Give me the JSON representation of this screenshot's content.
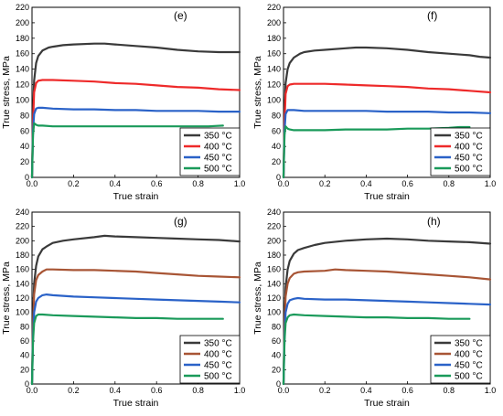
{
  "colors": {
    "350": "#3a3a3a",
    "400a": "#ee2a2a",
    "400b": "#a85535",
    "450": "#2a62c8",
    "500": "#1a9a5a"
  },
  "chart_data": [
    {
      "type": "line",
      "panel_label": "(e)",
      "xlabel": "True strain",
      "ylabel": "True stress, MPa",
      "xlim": [
        0,
        1.0
      ],
      "ylim": [
        0,
        220
      ],
      "xticks": [
        "0.0",
        "0.2",
        "0.4",
        "0.6",
        "0.8",
        "1.0"
      ],
      "yticks": [
        "0",
        "20",
        "40",
        "60",
        "80",
        "100",
        "120",
        "140",
        "160",
        "180",
        "200",
        "220"
      ],
      "legend_position": "bottom-right",
      "series": [
        {
          "name": "350 °C",
          "color_key": "350",
          "x": [
            0,
            0.005,
            0.01,
            0.02,
            0.03,
            0.05,
            0.08,
            0.1,
            0.15,
            0.2,
            0.3,
            0.35,
            0.4,
            0.5,
            0.6,
            0.7,
            0.8,
            0.9,
            0.95,
            1.0
          ],
          "y": [
            0,
            80,
            125,
            148,
            157,
            164,
            168,
            169,
            171,
            172,
            173,
            173,
            172,
            170,
            168,
            165,
            163,
            162,
            162,
            162
          ]
        },
        {
          "name": "400  °C",
          "color_key": "400a",
          "x": [
            0,
            0.005,
            0.01,
            0.02,
            0.03,
            0.05,
            0.08,
            0.1,
            0.2,
            0.3,
            0.4,
            0.5,
            0.6,
            0.7,
            0.8,
            0.9,
            1.0
          ],
          "y": [
            0,
            70,
            110,
            122,
            125,
            126,
            126,
            126,
            125,
            124,
            122,
            121,
            119,
            117,
            116,
            114,
            113
          ]
        },
        {
          "name": "450 °C",
          "color_key": "450",
          "x": [
            0,
            0.005,
            0.01,
            0.02,
            0.03,
            0.05,
            0.1,
            0.2,
            0.3,
            0.4,
            0.5,
            0.6,
            0.7,
            0.8,
            0.9,
            1.0
          ],
          "y": [
            0,
            60,
            82,
            89,
            90,
            90,
            89,
            88,
            88,
            87,
            87,
            86,
            86,
            86,
            85,
            85
          ]
        },
        {
          "name": "500 °C",
          "color_key": "500",
          "x": [
            0,
            0.005,
            0.01,
            0.02,
            0.03,
            0.05,
            0.1,
            0.2,
            0.3,
            0.4,
            0.5,
            0.6,
            0.7,
            0.8,
            0.85,
            0.92
          ],
          "y": [
            0,
            55,
            70,
            68,
            67,
            67,
            66,
            66,
            66,
            66,
            66,
            66,
            66,
            66,
            66,
            67
          ]
        }
      ]
    },
    {
      "type": "line",
      "panel_label": "(f)",
      "xlabel": "True strain",
      "ylabel": "True stress, MPa",
      "xlim": [
        0,
        1.0
      ],
      "ylim": [
        0,
        220
      ],
      "xticks": [
        "0.0",
        "0.2",
        "0.4",
        "0.6",
        "0.8",
        "1.0"
      ],
      "yticks": [
        "0",
        "20",
        "40",
        "60",
        "80",
        "100",
        "120",
        "140",
        "160",
        "180",
        "200",
        "220"
      ],
      "legend_position": "bottom-right",
      "series": [
        {
          "name": "350 °C",
          "color_key": "350",
          "x": [
            0,
            0.005,
            0.01,
            0.02,
            0.03,
            0.05,
            0.08,
            0.1,
            0.15,
            0.2,
            0.3,
            0.35,
            0.4,
            0.5,
            0.6,
            0.7,
            0.8,
            0.9,
            0.95,
            1.0
          ],
          "y": [
            0,
            80,
            122,
            140,
            148,
            155,
            160,
            162,
            164,
            165,
            167,
            168,
            168,
            167,
            165,
            162,
            160,
            158,
            156,
            155
          ]
        },
        {
          "name": "400  °C",
          "color_key": "400a",
          "x": [
            0,
            0.005,
            0.01,
            0.02,
            0.03,
            0.05,
            0.1,
            0.2,
            0.3,
            0.4,
            0.5,
            0.6,
            0.7,
            0.8,
            0.9,
            1.0
          ],
          "y": [
            0,
            70,
            108,
            118,
            120,
            121,
            121,
            121,
            120,
            119,
            118,
            117,
            115,
            114,
            112,
            110
          ]
        },
        {
          "name": "450 °C",
          "color_key": "450",
          "x": [
            0,
            0.005,
            0.01,
            0.02,
            0.03,
            0.05,
            0.1,
            0.2,
            0.3,
            0.4,
            0.5,
            0.6,
            0.7,
            0.8,
            0.9,
            1.0
          ],
          "y": [
            0,
            60,
            82,
            87,
            87,
            87,
            86,
            86,
            86,
            86,
            85,
            85,
            85,
            84,
            84,
            83
          ]
        },
        {
          "name": "500 °C",
          "color_key": "500",
          "x": [
            0,
            0.005,
            0.01,
            0.02,
            0.03,
            0.05,
            0.1,
            0.2,
            0.3,
            0.4,
            0.5,
            0.6,
            0.7,
            0.8,
            0.85,
            0.9
          ],
          "y": [
            0,
            55,
            66,
            63,
            62,
            61,
            61,
            61,
            62,
            62,
            62,
            63,
            63,
            64,
            65,
            65
          ]
        }
      ]
    },
    {
      "type": "line",
      "panel_label": "(g)",
      "xlabel": "True strain",
      "ylabel": "True stress, MPa",
      "xlim": [
        0,
        1.0
      ],
      "ylim": [
        0,
        240
      ],
      "xticks": [
        "0.0",
        "0.2",
        "0.4",
        "0.6",
        "0.8",
        "1.0"
      ],
      "yticks": [
        "0",
        "20",
        "40",
        "60",
        "80",
        "100",
        "120",
        "140",
        "160",
        "180",
        "200",
        "220",
        "240"
      ],
      "legend_position": "bottom-right",
      "series": [
        {
          "name": "350 °C",
          "color_key": "350",
          "x": [
            0,
            0.005,
            0.01,
            0.02,
            0.03,
            0.05,
            0.07,
            0.1,
            0.15,
            0.2,
            0.3,
            0.35,
            0.4,
            0.5,
            0.6,
            0.7,
            0.8,
            0.9,
            1.0
          ],
          "y": [
            0,
            90,
            140,
            165,
            178,
            188,
            192,
            197,
            200,
            202,
            205,
            207,
            206,
            205,
            204,
            203,
            202,
            201,
            199
          ]
        },
        {
          "name": "400  °C",
          "color_key": "400b",
          "x": [
            0,
            0.005,
            0.01,
            0.02,
            0.03,
            0.05,
            0.07,
            0.1,
            0.2,
            0.3,
            0.4,
            0.5,
            0.6,
            0.7,
            0.8,
            0.9,
            1.0
          ],
          "y": [
            0,
            80,
            125,
            145,
            152,
            157,
            160,
            160,
            159,
            159,
            158,
            157,
            155,
            153,
            151,
            150,
            149
          ]
        },
        {
          "name": "450 °C",
          "color_key": "450",
          "x": [
            0,
            0.005,
            0.01,
            0.02,
            0.03,
            0.05,
            0.07,
            0.1,
            0.2,
            0.3,
            0.4,
            0.5,
            0.6,
            0.7,
            0.8,
            0.9,
            1.0
          ],
          "y": [
            0,
            65,
            100,
            115,
            120,
            124,
            125,
            124,
            122,
            121,
            120,
            119,
            118,
            117,
            116,
            115,
            114
          ]
        },
        {
          "name": "500 °C",
          "color_key": "500",
          "x": [
            0,
            0.005,
            0.01,
            0.02,
            0.03,
            0.05,
            0.1,
            0.2,
            0.3,
            0.4,
            0.5,
            0.6,
            0.7,
            0.8,
            0.9,
            0.92
          ],
          "y": [
            0,
            60,
            85,
            95,
            97,
            97,
            96,
            95,
            94,
            93,
            92,
            92,
            91,
            91,
            91,
            91
          ]
        }
      ]
    },
    {
      "type": "line",
      "panel_label": "(h)",
      "xlabel": "True strain",
      "ylabel": "True stress,  MPa",
      "xlim": [
        0,
        1.0
      ],
      "ylim": [
        0,
        240
      ],
      "xticks": [
        "0.0",
        "0.2",
        "0.4",
        "0.6",
        "0.8",
        "1.0"
      ],
      "yticks": [
        "0",
        "20",
        "40",
        "60",
        "80",
        "100",
        "120",
        "140",
        "160",
        "180",
        "200",
        "220",
        "240"
      ],
      "legend_position": "bottom-right",
      "series": [
        {
          "name": "350 °C",
          "color_key": "350",
          "x": [
            0,
            0.005,
            0.01,
            0.02,
            0.03,
            0.05,
            0.07,
            0.1,
            0.15,
            0.2,
            0.3,
            0.4,
            0.5,
            0.6,
            0.7,
            0.8,
            0.9,
            1.0
          ],
          "y": [
            0,
            90,
            135,
            160,
            172,
            182,
            187,
            190,
            194,
            197,
            200,
            202,
            203,
            202,
            200,
            199,
            198,
            196
          ]
        },
        {
          "name": "400  °C",
          "color_key": "400b",
          "x": [
            0,
            0.005,
            0.01,
            0.02,
            0.03,
            0.05,
            0.07,
            0.1,
            0.2,
            0.25,
            0.3,
            0.4,
            0.5,
            0.6,
            0.7,
            0.8,
            0.9,
            1.0
          ],
          "y": [
            0,
            80,
            122,
            140,
            148,
            154,
            156,
            157,
            158,
            160,
            159,
            158,
            157,
            155,
            153,
            151,
            149,
            146
          ]
        },
        {
          "name": "450 °C",
          "color_key": "450",
          "x": [
            0,
            0.005,
            0.01,
            0.02,
            0.03,
            0.05,
            0.07,
            0.1,
            0.2,
            0.3,
            0.4,
            0.5,
            0.6,
            0.7,
            0.8,
            0.9,
            1.0
          ],
          "y": [
            0,
            65,
            100,
            112,
            117,
            119,
            120,
            119,
            118,
            118,
            117,
            116,
            115,
            114,
            113,
            112,
            111
          ]
        },
        {
          "name": "500 °C",
          "color_key": "500",
          "x": [
            0,
            0.005,
            0.01,
            0.02,
            0.03,
            0.05,
            0.1,
            0.2,
            0.3,
            0.4,
            0.5,
            0.6,
            0.7,
            0.8,
            0.9
          ],
          "y": [
            0,
            60,
            85,
            93,
            96,
            97,
            96,
            95,
            94,
            93,
            93,
            92,
            92,
            91,
            91
          ]
        }
      ]
    }
  ]
}
